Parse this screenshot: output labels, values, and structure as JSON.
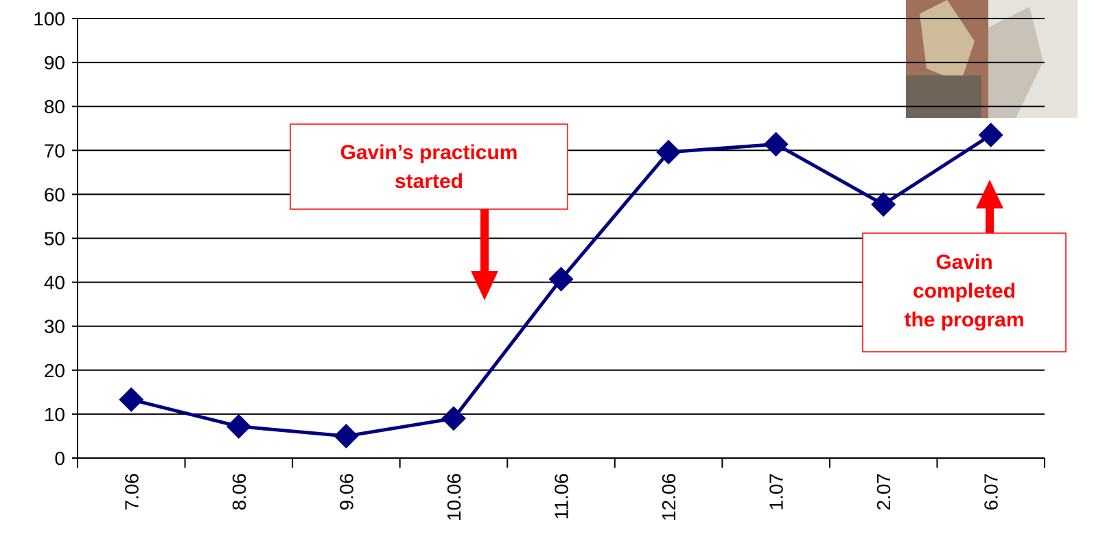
{
  "chart_data": {
    "type": "line",
    "categories": [
      "7.06",
      "8.06",
      "9.06",
      "10.06",
      "11.06",
      "12.06",
      "1.07",
      "2.07",
      "6.07"
    ],
    "series": [
      {
        "name": "Gavin",
        "color": "#000080",
        "values": [
          13.3,
          7.2,
          5.0,
          9.0,
          40.7,
          69.6,
          71.4,
          57.7,
          73.5
        ]
      }
    ],
    "ylim": [
      0,
      100
    ],
    "yticks": [
      0,
      10,
      20,
      30,
      40,
      50,
      60,
      70,
      80,
      90,
      100
    ],
    "grid": true,
    "annotations": [
      {
        "lines": [
          "Gavin’s practicum",
          "started"
        ]
      },
      {
        "lines": [
          "Gavin",
          "completed",
          "the program"
        ]
      }
    ]
  }
}
